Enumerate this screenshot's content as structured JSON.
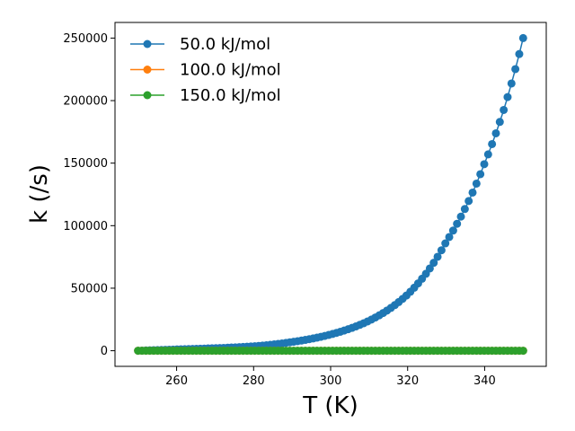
{
  "chart_data": {
    "type": "line",
    "xlabel": "T (K)",
    "ylabel": "k (/s)",
    "xlim": [
      244,
      356
    ],
    "ylim": [
      -12500,
      262500
    ],
    "xticks": [
      260,
      280,
      300,
      320,
      340
    ],
    "yticks": [
      0,
      50000,
      100000,
      150000,
      200000,
      250000
    ],
    "grid": false,
    "legend_position": "top-left",
    "x_start": 250,
    "x_end": 350,
    "num_points": 100,
    "series": [
      {
        "name": "50.0 kJ/mol",
        "color": "#1f77b4",
        "sampled_values": [
          {
            "x": 250,
            "y": 0
          },
          {
            "x": 270,
            "y": 2000
          },
          {
            "x": 280,
            "y": 3500
          },
          {
            "x": 290,
            "y": 7000
          },
          {
            "x": 300,
            "y": 13000
          },
          {
            "x": 310,
            "y": 24000
          },
          {
            "x": 320,
            "y": 45000
          },
          {
            "x": 330,
            "y": 87000
          },
          {
            "x": 340,
            "y": 150000
          },
          {
            "x": 345,
            "y": 193000
          },
          {
            "x": 350,
            "y": 250000
          }
        ]
      },
      {
        "name": "100.0 kJ/mol",
        "color": "#ff7f0e",
        "sampled_values": [
          {
            "x": 250,
            "y": 0
          },
          {
            "x": 350,
            "y": 0
          }
        ]
      },
      {
        "name": "150.0 kJ/mol",
        "color": "#2ca02c",
        "sampled_values": [
          {
            "x": 250,
            "y": 0
          },
          {
            "x": 350,
            "y": 0
          }
        ]
      }
    ]
  }
}
